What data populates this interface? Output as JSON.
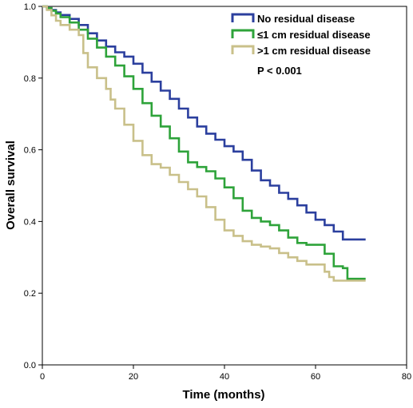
{
  "chart_data": {
    "type": "line",
    "title": "",
    "xlabel": "Time (months)",
    "ylabel": "Overall survival",
    "xlim": [
      0,
      80
    ],
    "ylim": [
      0.0,
      1.0
    ],
    "x_ticks": [
      0,
      20,
      40,
      60,
      80
    ],
    "y_ticks": [
      "0.0",
      "0.2",
      "0.4",
      "0.6",
      "0.8",
      "1.0"
    ],
    "grid": false,
    "legend_position": "top-right",
    "annotation": "P < 0.001",
    "series": [
      {
        "name": "No residual disease",
        "color": "#2b3f9e",
        "points": [
          [
            0,
            1.0
          ],
          [
            1,
            0.995
          ],
          [
            2,
            0.99
          ],
          [
            3,
            0.983
          ],
          [
            4,
            0.976
          ],
          [
            6,
            0.965
          ],
          [
            8,
            0.948
          ],
          [
            10,
            0.925
          ],
          [
            12,
            0.905
          ],
          [
            14,
            0.888
          ],
          [
            16,
            0.872
          ],
          [
            18,
            0.86
          ],
          [
            20,
            0.84
          ],
          [
            22,
            0.815
          ],
          [
            24,
            0.79
          ],
          [
            26,
            0.765
          ],
          [
            28,
            0.742
          ],
          [
            30,
            0.715
          ],
          [
            32,
            0.69
          ],
          [
            34,
            0.665
          ],
          [
            36,
            0.645
          ],
          [
            38,
            0.628
          ],
          [
            40,
            0.61
          ],
          [
            42,
            0.595
          ],
          [
            44,
            0.572
          ],
          [
            46,
            0.542
          ],
          [
            48,
            0.515
          ],
          [
            50,
            0.5
          ],
          [
            52,
            0.48
          ],
          [
            54,
            0.463
          ],
          [
            56,
            0.445
          ],
          [
            58,
            0.425
          ],
          [
            60,
            0.405
          ],
          [
            62,
            0.39
          ],
          [
            64,
            0.372
          ],
          [
            66,
            0.35
          ],
          [
            68,
            0.35
          ],
          [
            71,
            0.35
          ]
        ]
      },
      {
        "name": "≤1 cm residual disease",
        "color": "#2ea33a",
        "points": [
          [
            0,
            1.0
          ],
          [
            1,
            0.995
          ],
          [
            2,
            0.988
          ],
          [
            3,
            0.98
          ],
          [
            4,
            0.97
          ],
          [
            6,
            0.955
          ],
          [
            8,
            0.935
          ],
          [
            10,
            0.91
          ],
          [
            12,
            0.885
          ],
          [
            14,
            0.86
          ],
          [
            16,
            0.835
          ],
          [
            18,
            0.805
          ],
          [
            20,
            0.77
          ],
          [
            22,
            0.73
          ],
          [
            24,
            0.695
          ],
          [
            26,
            0.665
          ],
          [
            28,
            0.632
          ],
          [
            30,
            0.595
          ],
          [
            32,
            0.565
          ],
          [
            34,
            0.552
          ],
          [
            36,
            0.54
          ],
          [
            38,
            0.52
          ],
          [
            40,
            0.495
          ],
          [
            42,
            0.465
          ],
          [
            44,
            0.43
          ],
          [
            46,
            0.41
          ],
          [
            48,
            0.4
          ],
          [
            50,
            0.39
          ],
          [
            52,
            0.375
          ],
          [
            54,
            0.355
          ],
          [
            56,
            0.34
          ],
          [
            58,
            0.335
          ],
          [
            60,
            0.335
          ],
          [
            62,
            0.31
          ],
          [
            64,
            0.275
          ],
          [
            66,
            0.27
          ],
          [
            67,
            0.24
          ],
          [
            71,
            0.24
          ]
        ]
      },
      {
        "name": ">1 cm residual disease",
        "color": "#c9c08a",
        "points": [
          [
            0,
            1.0
          ],
          [
            1,
            0.99
          ],
          [
            2,
            0.975
          ],
          [
            3,
            0.96
          ],
          [
            4,
            0.948
          ],
          [
            6,
            0.935
          ],
          [
            8,
            0.92
          ],
          [
            9,
            0.87
          ],
          [
            10,
            0.83
          ],
          [
            12,
            0.8
          ],
          [
            14,
            0.77
          ],
          [
            15,
            0.74
          ],
          [
            16,
            0.715
          ],
          [
            18,
            0.67
          ],
          [
            20,
            0.625
          ],
          [
            22,
            0.585
          ],
          [
            24,
            0.56
          ],
          [
            26,
            0.55
          ],
          [
            28,
            0.53
          ],
          [
            30,
            0.51
          ],
          [
            32,
            0.49
          ],
          [
            34,
            0.47
          ],
          [
            36,
            0.44
          ],
          [
            38,
            0.405
          ],
          [
            40,
            0.375
          ],
          [
            42,
            0.36
          ],
          [
            44,
            0.345
          ],
          [
            46,
            0.335
          ],
          [
            48,
            0.33
          ],
          [
            50,
            0.325
          ],
          [
            52,
            0.312
          ],
          [
            54,
            0.3
          ],
          [
            56,
            0.29
          ],
          [
            58,
            0.28
          ],
          [
            60,
            0.28
          ],
          [
            62,
            0.26
          ],
          [
            63,
            0.245
          ],
          [
            64,
            0.235
          ],
          [
            71,
            0.235
          ]
        ]
      }
    ]
  }
}
